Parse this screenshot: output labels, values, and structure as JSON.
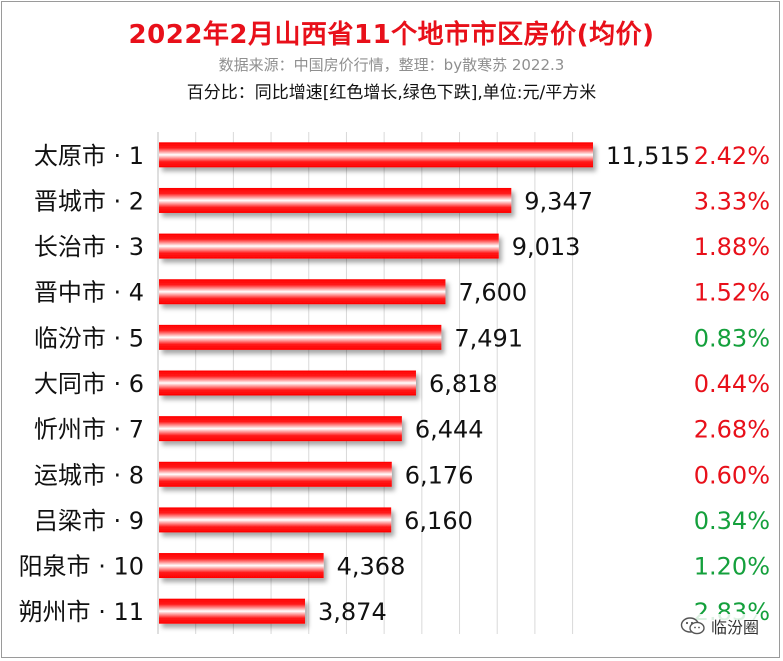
{
  "chart_data": {
    "type": "bar",
    "orientation": "horizontal",
    "title": "2022年2月山西省11个地市市区房价(均价)",
    "subtitle": "数据来源：中国房价行情，整理：by散寒苏 2022.3",
    "note": "百分比：同比增速[红色增长,绿色下跌],单位:元/平方米",
    "categories": [
      "太原市 · 1",
      "晋城市 · 2",
      "长治市 · 3",
      "晋中市 · 4",
      "临汾市 · 5",
      "大同市 · 6",
      "忻州市 · 7",
      "运城市 · 8",
      "吕梁市 · 9",
      "阳泉市 · 10",
      "朔州市 · 11"
    ],
    "values": [
      11515,
      9347,
      9013,
      7600,
      7491,
      6818,
      6444,
      6176,
      6160,
      4368,
      3874
    ],
    "value_labels": [
      "11,515",
      "9,347",
      "9,013",
      "7,600",
      "7,491",
      "6,818",
      "6,444",
      "6,176",
      "6,160",
      "4,368",
      "3,874"
    ],
    "growth_labels": [
      "2.42%",
      "3.33%",
      "1.88%",
      "1.52%",
      "0.83%",
      "0.44%",
      "2.68%",
      "0.60%",
      "0.34%",
      "1.20%",
      "2.83%"
    ],
    "growth_direction": [
      "up",
      "up",
      "up",
      "up",
      "down",
      "up",
      "up",
      "up",
      "down",
      "down",
      "down"
    ],
    "xlim": [
      0,
      11515
    ],
    "grid": true,
    "legend": "none",
    "colors": {
      "bar": "#ff0000",
      "bar_highlight": "#ffffff",
      "up": "#e8101a",
      "down": "#14a03c",
      "title": "#e8101a",
      "subtitle": "#8f8f8f",
      "grid": "#d9d9d9"
    }
  },
  "watermark": {
    "icon": "wechat-icon",
    "text": "临汾圈"
  }
}
